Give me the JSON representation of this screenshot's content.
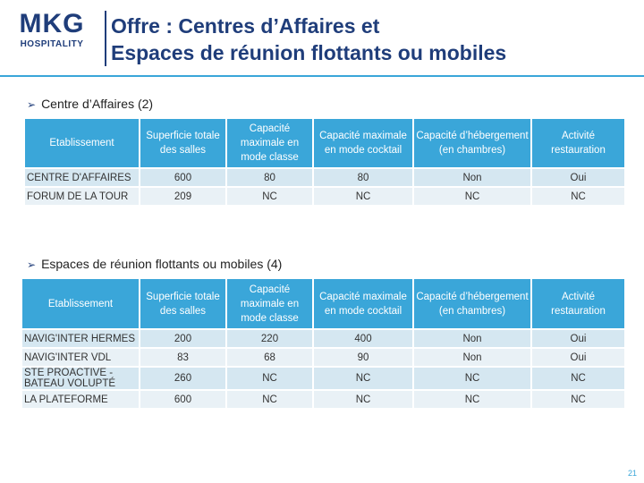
{
  "header": {
    "logo": "MKG",
    "logo_sub": "HOSPITALITY",
    "title_lines": [
      "Offre : Centres d’Affaires et",
      "Espaces de réunion flottants ou mobiles"
    ]
  },
  "sections": [
    {
      "heading": "Centre d’Affaires (2)",
      "table": {
        "columns": [
          "Etablissement",
          "Superficie totale des salles",
          "Capacité maximale en mode classe",
          "Capacité maximale en mode cocktail",
          "Capacité d’hébergement (en chambres)",
          "Activité restauration"
        ],
        "rows": [
          [
            "CENTRE D'AFFAIRES",
            "600",
            "80",
            "80",
            "Non",
            "Oui"
          ],
          [
            "FORUM DE LA TOUR",
            "209",
            "NC",
            "NC",
            "NC",
            "NC"
          ]
        ]
      }
    },
    {
      "heading": "Espaces de réunion flottants ou mobiles (4)",
      "table": {
        "columns": [
          "Etablissement",
          "Superficie totale des salles",
          "Capacité maximale en mode classe",
          "Capacité maximale en mode cocktail",
          "Capacité d’hébergement (en chambres)",
          "Activité restauration"
        ],
        "rows": [
          [
            "NAVIG'INTER HERMES",
            "200",
            "220",
            "400",
            "Non",
            "Oui"
          ],
          [
            "NAVIG'INTER VDL",
            "83",
            "68",
            "90",
            "Non",
            "Oui"
          ],
          [
            "STE PROACTIVE - BATEAU VOLUPTÉ",
            "260",
            "NC",
            "NC",
            "NC",
            "NC"
          ],
          [
            "LA PLATEFORME",
            "600",
            "NC",
            "NC",
            "NC",
            "NC"
          ]
        ]
      }
    }
  ],
  "page_number": "21"
}
